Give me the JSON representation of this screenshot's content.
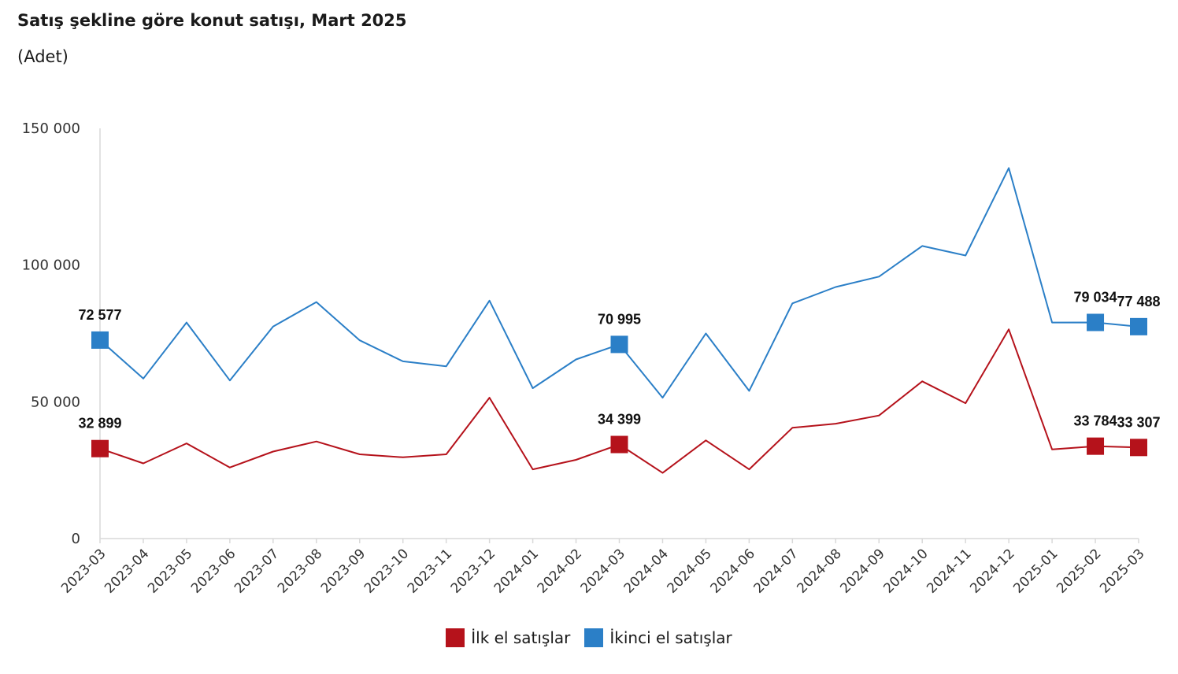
{
  "chart_data": {
    "type": "line",
    "title": "Satış şekline göre konut satışı, Mart 2025",
    "subtitle": "(Adet)",
    "categories": [
      "2023-03",
      "2023-04",
      "2023-05",
      "2023-06",
      "2023-07",
      "2023-08",
      "2023-09",
      "2023-10",
      "2023-11",
      "2023-12",
      "2024-01",
      "2024-02",
      "2024-03",
      "2024-04",
      "2024-05",
      "2024-06",
      "2024-07",
      "2024-08",
      "2024-09",
      "2024-10",
      "2024-11",
      "2024-12",
      "2025-01",
      "2025-02",
      "2025-03"
    ],
    "ylim": [
      0,
      150000
    ],
    "yticks": [
      0,
      50000,
      100000,
      150000
    ],
    "ytick_labels": [
      "0",
      "50 000",
      "100 000",
      "150 000"
    ],
    "grid": false,
    "legend_position": "bottom",
    "series": [
      {
        "name": "İlk el satışlar",
        "color": "#b5121b",
        "values": [
          32899,
          27500,
          34800,
          26000,
          31800,
          35500,
          30800,
          29700,
          30800,
          51500,
          25300,
          28800,
          34399,
          24000,
          35900,
          25300,
          40500,
          42000,
          45000,
          57500,
          49500,
          76500,
          32600,
          33784,
          33307
        ],
        "labeled_points": [
          {
            "index": 0,
            "label": "32 899"
          },
          {
            "index": 12,
            "label": "34 399"
          },
          {
            "index": 23,
            "label": "33 784"
          },
          {
            "index": 24,
            "label": "33 307"
          }
        ]
      },
      {
        "name": "İkinci el satışlar",
        "color": "#2b7fc7",
        "values": [
          72577,
          58500,
          79000,
          57800,
          77500,
          86500,
          72500,
          64800,
          63000,
          87000,
          55000,
          65500,
          70995,
          51500,
          75000,
          54000,
          86000,
          92000,
          95800,
          107000,
          103500,
          135500,
          79000,
          79034,
          77488
        ],
        "labeled_points": [
          {
            "index": 0,
            "label": "72 577"
          },
          {
            "index": 12,
            "label": "70 995"
          },
          {
            "index": 23,
            "label": "79 034"
          },
          {
            "index": 24,
            "label": "77 488"
          }
        ]
      }
    ]
  }
}
